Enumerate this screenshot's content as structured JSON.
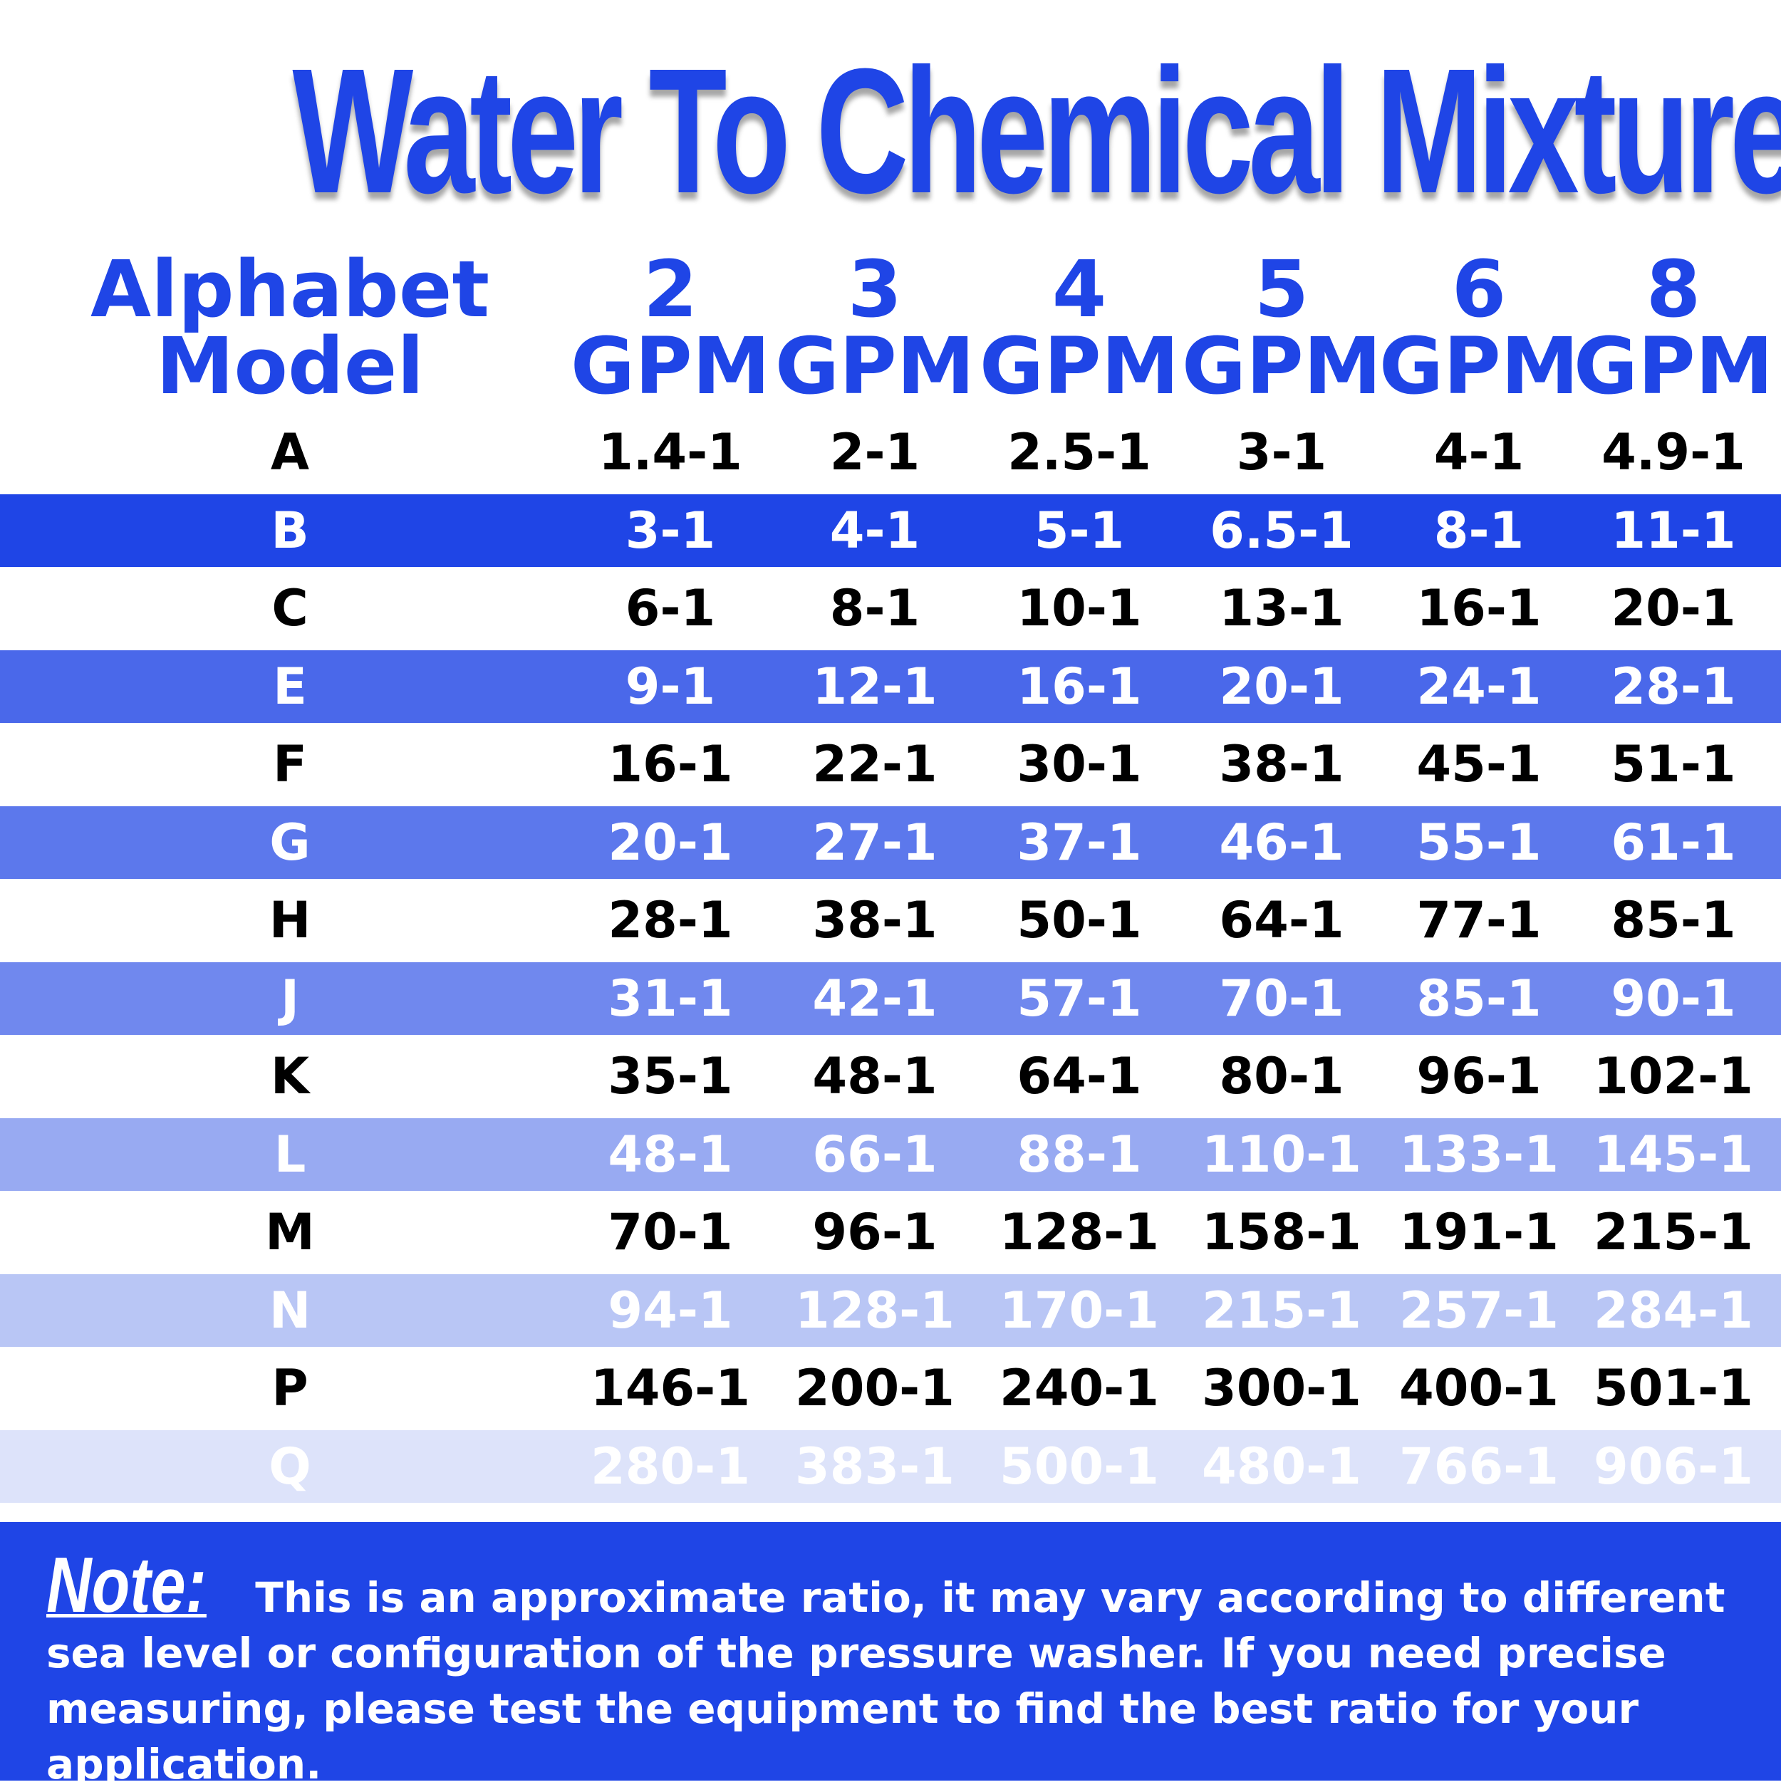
{
  "header": {
    "title": "Water To Chemical Mixture"
  },
  "table": {
    "columns": [
      "Alphabet Model",
      "2 GPM",
      "3 GPM",
      "4 GPM",
      "5 GPM",
      "6 GPM",
      "8 GPM"
    ],
    "rows": [
      [
        "A",
        "1.4-1",
        "2-1",
        "2.5-1",
        "3-1",
        "4-1",
        "4.9-1"
      ],
      [
        "B",
        "3-1",
        "4-1",
        "5-1",
        "6.5-1",
        "8-1",
        "11-1"
      ],
      [
        "C",
        "6-1",
        "8-1",
        "10-1",
        "13-1",
        "16-1",
        "20-1"
      ],
      [
        "E",
        "9-1",
        "12-1",
        "16-1",
        "20-1",
        "24-1",
        "28-1"
      ],
      [
        "F",
        "16-1",
        "22-1",
        "30-1",
        "38-1",
        "45-1",
        "51-1"
      ],
      [
        "G",
        "20-1",
        "27-1",
        "37-1",
        "46-1",
        "55-1",
        "61-1"
      ],
      [
        "H",
        "28-1",
        "38-1",
        "50-1",
        "64-1",
        "77-1",
        "85-1"
      ],
      [
        "J",
        "31-1",
        "42-1",
        "57-1",
        "70-1",
        "85-1",
        "90-1"
      ],
      [
        "K",
        "35-1",
        "48-1",
        "64-1",
        "80-1",
        "96-1",
        "102-1"
      ],
      [
        "L",
        "48-1",
        "66-1",
        "88-1",
        "110-1",
        "133-1",
        "145-1"
      ],
      [
        "M",
        "70-1",
        "96-1",
        "128-1",
        "158-1",
        "191-1",
        "215-1"
      ],
      [
        "N",
        "94-1",
        "128-1",
        "170-1",
        "215-1",
        "257-1",
        "284-1"
      ],
      [
        "P",
        "146-1",
        "200-1",
        "240-1",
        "300-1",
        "400-1",
        "501-1"
      ],
      [
        "Q",
        "280-1",
        "383-1",
        "500-1",
        "480-1",
        "766-1",
        "906-1"
      ]
    ]
  },
  "note": {
    "label": "Note:",
    "text": "This is an approximate ratio, it may vary according to different sea level or configuration of the pressure washer. If you need precise measuring, please test the equipment to find the best ratio for your application."
  }
}
